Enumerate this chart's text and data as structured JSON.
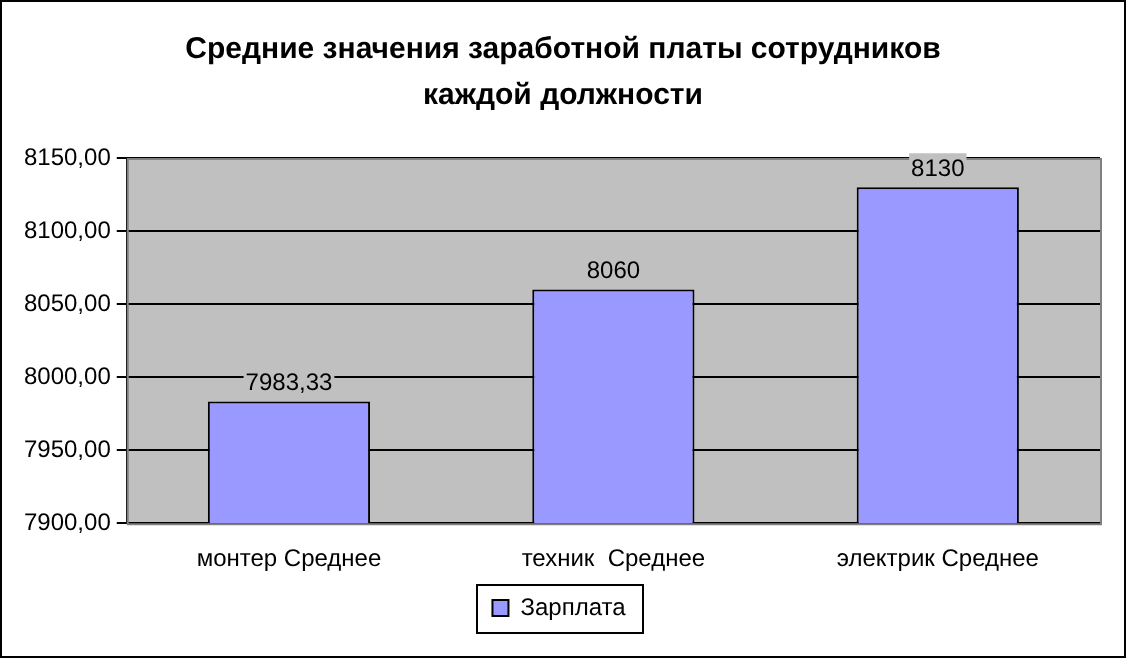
{
  "chart_data": {
    "type": "bar",
    "title": "Средние значения заработной платы сотрудников каждой должности",
    "categories": [
      "монтер Среднее",
      "техник  Среднее",
      "электрик Среднее"
    ],
    "series": [
      {
        "name": "Зарплата",
        "color": "#9999ff",
        "values": [
          7983.33,
          8060,
          8130
        ],
        "value_labels": [
          "7983,33",
          "8060",
          "8130"
        ]
      }
    ],
    "ylim": [
      7900,
      8150
    ],
    "yticks": [
      {
        "value": 7900,
        "label": "7900,00"
      },
      {
        "value": 7950,
        "label": "7950,00"
      },
      {
        "value": 8000,
        "label": "8000,00"
      },
      {
        "value": 8050,
        "label": "8050,00"
      },
      {
        "value": 8100,
        "label": "8100,00"
      },
      {
        "value": 8150,
        "label": "8150,00"
      }
    ],
    "grid": "y",
    "legend": "bottom"
  }
}
